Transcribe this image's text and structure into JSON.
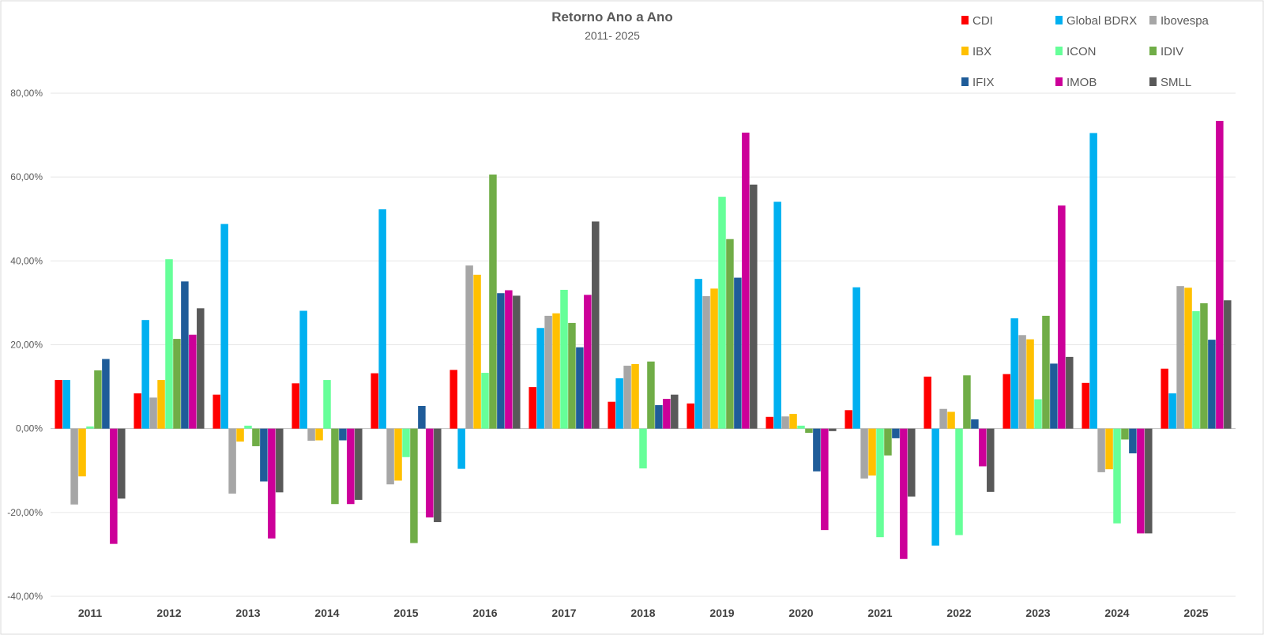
{
  "chart_data": {
    "type": "bar",
    "title": "Retorno Ano a Ano",
    "subtitle": "2011- 2025",
    "xlabel": "",
    "ylabel": "",
    "ylim": [
      -40,
      80
    ],
    "y_ticks": [
      -40,
      -20,
      0,
      20,
      40,
      60,
      80
    ],
    "y_tick_labels": [
      "-40,00%",
      "-20,00%",
      "0,00%",
      "20,00%",
      "40,00%",
      "60,00%",
      "80,00%"
    ],
    "grid": true,
    "legend_position": "top-right",
    "categories": [
      "2011",
      "2012",
      "2013",
      "2014",
      "2015",
      "2016",
      "2017",
      "2018",
      "2019",
      "2020",
      "2021",
      "2022",
      "2023",
      "2024",
      "2025"
    ],
    "series": [
      {
        "name": "CDI",
        "color": "#ff0000",
        "values": [
          11.6,
          8.4,
          8.1,
          10.8,
          13.2,
          14.0,
          9.9,
          6.4,
          6.0,
          2.8,
          4.4,
          12.4,
          13.0,
          10.9,
          14.3
        ]
      },
      {
        "name": "Global BDRX",
        "color": "#00b0f0",
        "values": [
          11.6,
          25.9,
          48.8,
          28.1,
          52.3,
          -9.6,
          24.0,
          12.0,
          35.7,
          54.1,
          33.7,
          -27.9,
          26.3,
          70.5,
          8.4
        ]
      },
      {
        "name": "Ibovespa",
        "color": "#a6a6a6",
        "values": [
          -18.1,
          7.4,
          -15.5,
          -2.9,
          -13.3,
          38.9,
          26.9,
          15.0,
          31.6,
          2.9,
          -11.9,
          4.7,
          22.3,
          -10.4,
          34.0
        ]
      },
      {
        "name": "IBX",
        "color": "#ffc000",
        "values": [
          -11.4,
          11.6,
          -3.1,
          -2.8,
          -12.4,
          36.7,
          27.5,
          15.4,
          33.4,
          3.5,
          -11.2,
          4.0,
          21.3,
          -9.7,
          33.6
        ]
      },
      {
        "name": "ICON",
        "color": "#66ff99",
        "values": [
          0.5,
          40.4,
          0.7,
          11.6,
          -6.8,
          13.3,
          33.1,
          -9.5,
          55.3,
          0.7,
          -25.9,
          -25.4,
          7.0,
          -22.6,
          28.0
        ]
      },
      {
        "name": "IDIV",
        "color": "#70ad47",
        "values": [
          13.9,
          21.4,
          -4.2,
          -18.0,
          -27.3,
          60.6,
          25.2,
          16.0,
          45.2,
          -1.0,
          -6.4,
          12.7,
          26.9,
          -2.6,
          29.9
        ]
      },
      {
        "name": "IFIX",
        "color": "#1f5c99",
        "values": [
          16.6,
          35.1,
          -12.6,
          -2.8,
          5.4,
          32.3,
          19.4,
          5.6,
          36.0,
          -10.2,
          -2.3,
          2.2,
          15.5,
          -5.9,
          21.2
        ]
      },
      {
        "name": "IMOB",
        "color": "#cc0099",
        "values": [
          -27.5,
          22.4,
          -26.2,
          -18.0,
          -21.2,
          33.0,
          31.9,
          7.1,
          70.6,
          -24.2,
          -31.1,
          -9.0,
          53.2,
          -25.0,
          73.4
        ]
      },
      {
        "name": "SMLL",
        "color": "#595959",
        "values": [
          -16.7,
          28.7,
          -15.2,
          -17.0,
          -22.3,
          31.7,
          49.4,
          8.1,
          58.2,
          -0.6,
          -16.2,
          -15.1,
          17.1,
          -25.0,
          30.6
        ]
      }
    ]
  }
}
